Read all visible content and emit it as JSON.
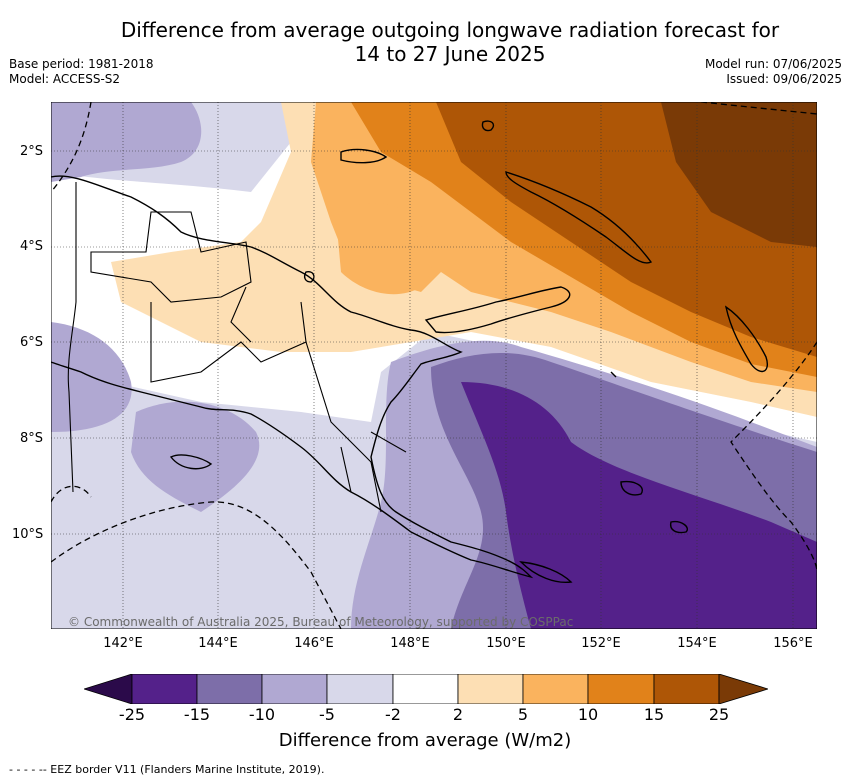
{
  "title_line1": "Difference from average outgoing longwave radiation forecast for",
  "title_line2": "14 to 27 June 2025",
  "meta_left": {
    "base_period": "Base period: 1981-2018",
    "model": "Model: ACCESS-S2"
  },
  "meta_right": {
    "model_run": "Model run: 07/06/2025",
    "issued": "Issued: 09/06/2025"
  },
  "lat_labels": [
    "2°S",
    "4°S",
    "6°S",
    "8°S",
    "10°S"
  ],
  "lon_labels": [
    "142°E",
    "144°E",
    "146°E",
    "148°E",
    "150°E",
    "152°E",
    "154°E",
    "156°E"
  ],
  "copyright": "© Commonwealth of Australia 2025, Bureau of Meteorology, supported by COSPPac",
  "colorbar": {
    "ticks": [
      "-25",
      "-15",
      "-10",
      "-5",
      "-2",
      "2",
      "5",
      "10",
      "15",
      "25"
    ],
    "colors": [
      "#2b0a4a",
      "#54218a",
      "#7d6ea9",
      "#b0a8d2",
      "#d8d8ea",
      "#ffffff",
      "#fddfb4",
      "#fab35e",
      "#e1821a",
      "#ae5606",
      "#7a3a06"
    ],
    "label": "Difference from average (W/m2)"
  },
  "footnote": "- -  - -  -- EEZ border V11 (Flanders Marine Institute, 2019)."
}
